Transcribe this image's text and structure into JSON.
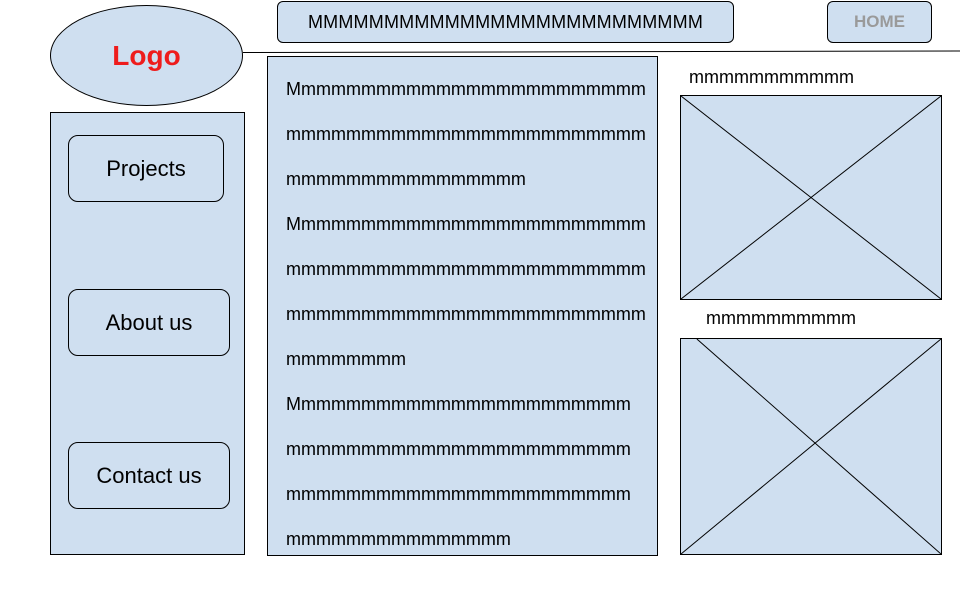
{
  "header": {
    "logo_text": "Logo",
    "banner_text": "MMMMMMMMMMMMMMMMMMMMMMMMMM",
    "home_label": "HOME"
  },
  "sidebar": {
    "items": [
      {
        "label": "Projects"
      },
      {
        "label": "About us"
      },
      {
        "label": "Contact us"
      }
    ]
  },
  "main": {
    "lines": [
      "Mmmmmmmmmmmmmmmmmmmmmmmm",
      "mmmmmmmmmmmmmmmmmmmmmmmm",
      "mmmmmmmmmmmmmmmm",
      "Mmmmmmmmmmmmmmmmmmmmmmmm",
      "mmmmmmmmmmmmmmmmmmmmmmmm",
      "mmmmmmmmmmmmmmmmmmmmmmmm",
      "mmmmmmmm",
      "Mmmmmmmmmmmmmmmmmmmmmmm",
      "mmmmmmmmmmmmmmmmmmmmmmm",
      "mmmmmmmmmmmmmmmmmmmmmmm",
      "mmmmmmmmmmmmmmm"
    ]
  },
  "images": [
    {
      "caption": "mmmmmmmmmmm"
    },
    {
      "caption": "mmmmmmmmmm"
    }
  ],
  "colors": {
    "panel_fill": "#cfdff0",
    "logo_text": "#ee1c1c",
    "home_text": "#9a9a9a"
  }
}
